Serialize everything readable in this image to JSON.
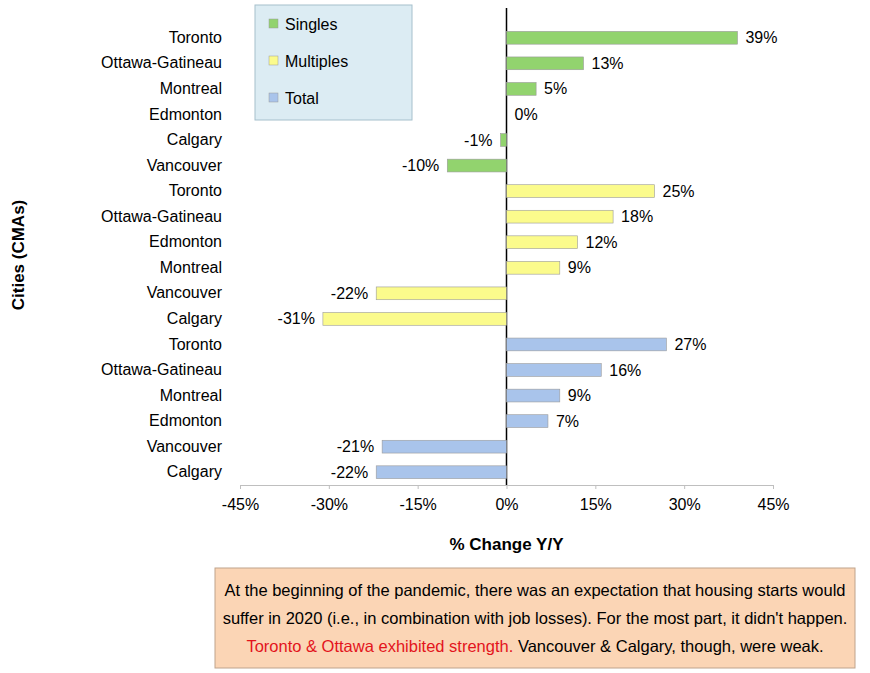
{
  "chart_data": {
    "type": "bar",
    "orientation": "horizontal",
    "data_labels": true,
    "legend": "top-left",
    "grid": false,
    "x_label": "% Change Y/Y",
    "y_label": "Cities (CMAs)",
    "categories": [
      "Toronto",
      "Ottawa-Gatineau",
      "Montreal",
      "Edmonton",
      "Calgary",
      "Vancouver",
      "Toronto",
      "Ottawa-Gatineau",
      "Edmonton",
      "Montreal",
      "Vancouver",
      "Calgary",
      "Toronto",
      "Ottawa-Gatineau",
      "Montreal",
      "Edmonton",
      "Vancouver",
      "Calgary"
    ],
    "series": [
      {
        "name": "Singles",
        "color": "#92d36e",
        "values": [
          39,
          13,
          5,
          0,
          -1,
          -10,
          null,
          null,
          null,
          null,
          null,
          null,
          null,
          null,
          null,
          null,
          null,
          null
        ],
        "value_labels": [
          "39%",
          "13%",
          "5%",
          "0%",
          "-1%",
          "-10%",
          null,
          null,
          null,
          null,
          null,
          null,
          null,
          null,
          null,
          null,
          null,
          null
        ]
      },
      {
        "name": "Multiples",
        "color": "#fbfb8c",
        "values": [
          null,
          null,
          null,
          null,
          null,
          null,
          25,
          18,
          12,
          9,
          -22,
          -31,
          null,
          null,
          null,
          null,
          null,
          null
        ],
        "value_labels": [
          null,
          null,
          null,
          null,
          null,
          null,
          "25%",
          "18%",
          "12%",
          "9%",
          "-22%",
          "-31%",
          null,
          null,
          null,
          null,
          null,
          null
        ]
      },
      {
        "name": "Total",
        "color": "#a9c4eb",
        "values": [
          null,
          null,
          null,
          null,
          null,
          null,
          null,
          null,
          null,
          null,
          null,
          null,
          27,
          16,
          9,
          7,
          -21,
          -22
        ],
        "value_labels": [
          null,
          null,
          null,
          null,
          null,
          null,
          null,
          null,
          null,
          null,
          null,
          null,
          "27%",
          "16%",
          "9%",
          "7%",
          "-21%",
          "-22%"
        ]
      }
    ],
    "xlim": [
      -45,
      45
    ],
    "xticks": [
      {
        "value": -45,
        "label": "-45%"
      },
      {
        "value": -30,
        "label": "-30%"
      },
      {
        "value": -15,
        "label": "-15%"
      },
      {
        "value": 0,
        "label": "0%"
      },
      {
        "value": 15,
        "label": "15%"
      },
      {
        "value": 30,
        "label": "30%"
      },
      {
        "value": 45,
        "label": "45%"
      }
    ],
    "annotation": [
      [
        {
          "text": "At the beginning of the pandemic, there was an expectation that housing starts would",
          "color": "#000000"
        }
      ],
      [
        {
          "text": "suffer in 2020 (i.e., in combination with job losses). For the most part, it didn't happen.",
          "color": "#000000"
        }
      ],
      [
        {
          "text": "Toronto & Ottawa exhibited strength.",
          "color": "#e3141c"
        },
        {
          "text": " Vancouver & Calgary, though, were weak.",
          "color": "#000000"
        }
      ]
    ]
  }
}
